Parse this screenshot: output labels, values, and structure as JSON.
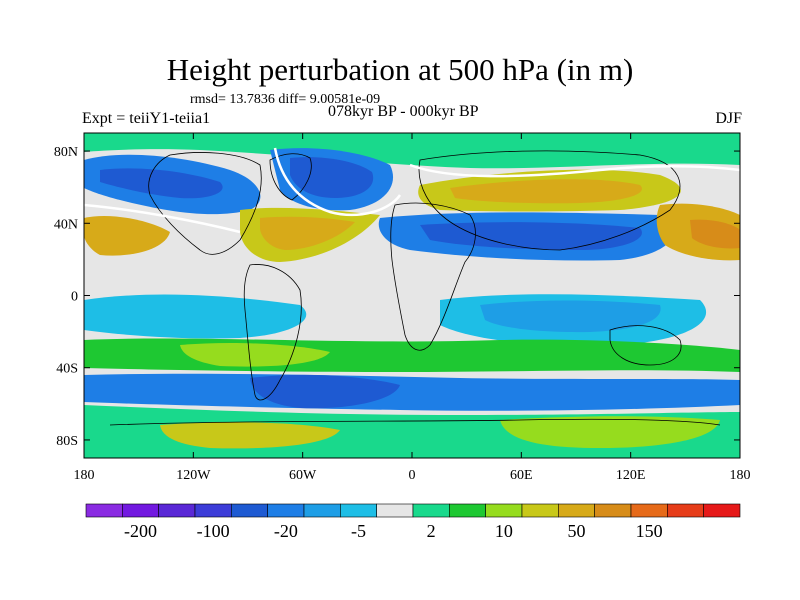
{
  "title": "Height perturbation at 500 hPa (in m)",
  "stats": "rmsd= 13.7836 diff= 9.00581e-09",
  "experiment": "Expt = teiiY1-teiia1",
  "period": "078kyr BP - 000kyr BP",
  "season": "DJF",
  "lat_labels": [
    {
      "text": "80N",
      "lat": 80
    },
    {
      "text": "40N",
      "lat": 40
    },
    {
      "text": "0",
      "lat": 0
    },
    {
      "text": "40S",
      "lat": -40
    },
    {
      "text": "80S",
      "lat": -80
    }
  ],
  "lon_labels": [
    {
      "text": "180",
      "lon": -180
    },
    {
      "text": "120W",
      "lon": -120
    },
    {
      "text": "60W",
      "lon": -60
    },
    {
      "text": "0",
      "lon": 0
    },
    {
      "text": "60E",
      "lon": 60
    },
    {
      "text": "120E",
      "lon": 120
    },
    {
      "text": "180",
      "lon": 180
    }
  ],
  "colorbar": {
    "colors": [
      "#8a2be2",
      "#7219e0",
      "#5a28d6",
      "#3c3cd8",
      "#1e5ad2",
      "#1e7ee6",
      "#1e9ee6",
      "#1ebee6",
      "#e6e6e6",
      "#19d98c",
      "#1ec832",
      "#96dc1e",
      "#c8c819",
      "#d7aa19",
      "#d78c19",
      "#e66a19",
      "#e63c19",
      "#e61919"
    ],
    "labels": [
      "-200",
      "-100",
      "-20",
      "-5",
      "2",
      "10",
      "50",
      "150"
    ]
  },
  "palette": {
    "strong_neg": "#1e5ad2",
    "mid_neg": "#1e7ee6",
    "weak_neg": "#1ebee6",
    "neutral": "#e6e6e6",
    "weak_pos": "#19d98c",
    "mid_pos": "#1ec832",
    "pos_yellow": "#96dc1e",
    "pos_gold": "#c8c819",
    "pos_orange": "#d7aa19"
  }
}
